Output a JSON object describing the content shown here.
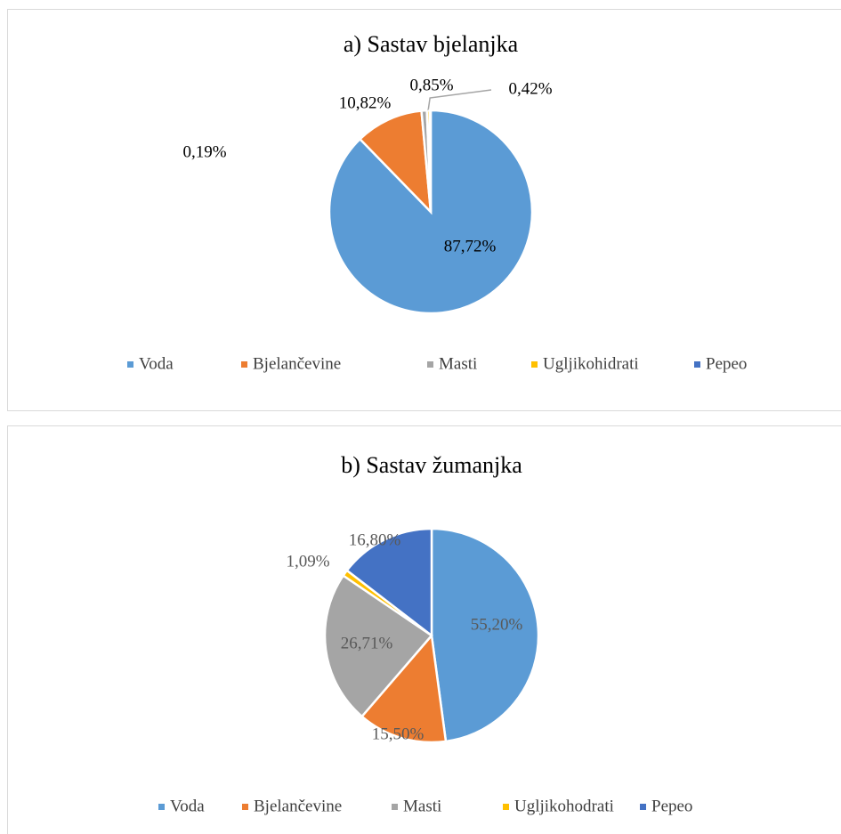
{
  "chart_data": [
    {
      "type": "pie",
      "title": "a) Sastav bjelanjka",
      "categories": [
        "Voda",
        "Bjelančevine",
        "Masti",
        "Ugljikohidrati",
        "Pepeo"
      ],
      "values": [
        87.72,
        10.82,
        0.85,
        0.42,
        0.19
      ],
      "value_labels": [
        "87,72%",
        "10,82%",
        "0,85%",
        "0,42%",
        "0,19%"
      ],
      "colors": [
        "#5b9bd5",
        "#ed7d31",
        "#a5a5a5",
        "#ffc000",
        "#4472c4"
      ],
      "legend": "bottom"
    },
    {
      "type": "pie",
      "title": "b) Sastav žumanjka",
      "categories": [
        "Voda",
        "Bjelančevine",
        "Masti",
        "Ugljikohodrati",
        "Pepeo"
      ],
      "values": [
        55.2,
        15.5,
        26.71,
        1.09,
        16.8
      ],
      "value_labels": [
        "55,20%",
        "15,50%",
        "26,71%",
        "1,09%",
        "16,80%"
      ],
      "colors": [
        "#5b9bd5",
        "#ed7d31",
        "#a5a5a5",
        "#ffc000",
        "#4472c4"
      ],
      "legend": "bottom"
    }
  ]
}
